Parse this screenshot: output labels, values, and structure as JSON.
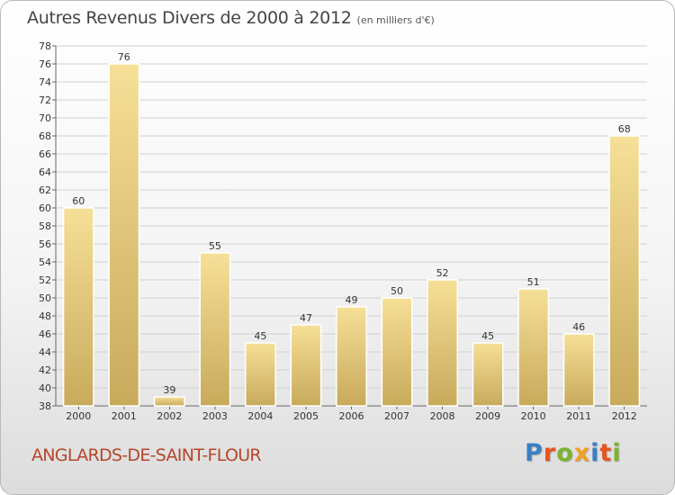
{
  "header": {
    "title": "Autres Revenus Divers de 2000 à 2012",
    "subtitle": "(en milliers d'€)"
  },
  "footer": {
    "place": "ANGLARDS-DE-SAINT-FLOUR",
    "brand": "Proxiti"
  },
  "colors": {
    "bar_light": "#f6df97",
    "bar_dark": "#c8aa5b",
    "place": "#b5472a",
    "brand_letters": [
      "#3a7fc4",
      "#e8531f",
      "#7bb32e",
      "#f0a020",
      "#3a7fc4",
      "#e8531f",
      "#7bb32e"
    ]
  },
  "chart_data": {
    "type": "bar",
    "title": "Autres Revenus Divers de 2000 à 2012",
    "subtitle": "(en milliers d'€)",
    "xlabel": "",
    "ylabel": "",
    "categories": [
      "2000",
      "2001",
      "2002",
      "2003",
      "2004",
      "2005",
      "2006",
      "2007",
      "2008",
      "2009",
      "2010",
      "2011",
      "2012"
    ],
    "values": [
      60,
      76,
      39,
      55,
      45,
      47,
      49,
      50,
      52,
      45,
      51,
      46,
      68
    ],
    "ylim": [
      38,
      78
    ],
    "yticks": [
      38,
      40,
      42,
      44,
      46,
      48,
      50,
      52,
      54,
      56,
      58,
      60,
      62,
      64,
      66,
      68,
      70,
      72,
      74,
      76,
      78
    ],
    "grid": true,
    "legend": "none"
  }
}
